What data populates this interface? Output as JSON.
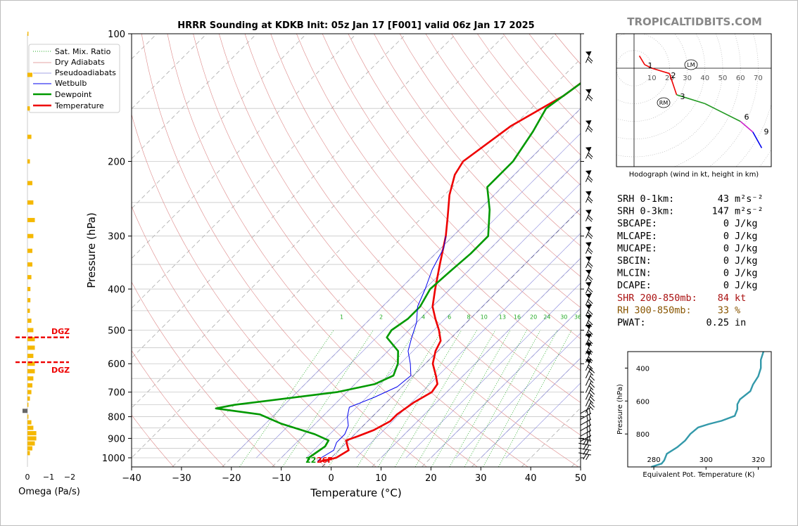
{
  "page": {
    "title": "HRRR Sounding at KDKB Init: 05z Jan 17 [F001] valid 06z Jan 17 2025",
    "brand": "TROPICALTIDBITS.COM"
  },
  "skewt": {
    "xlabel": "Temperature (°C)",
    "ylabel": "Pressure (hPa)",
    "x_ticks": [
      "−40",
      "−30",
      "−20",
      "−10",
      "0",
      "10",
      "20",
      "30",
      "40",
      "50"
    ],
    "y_ticks": [
      "100",
      "200",
      "300",
      "400",
      "500",
      "600",
      "700",
      "800",
      "900",
      "1000"
    ],
    "surface_dewpoint_label": "22",
    "surface_temp_label": "26F",
    "mixing_ratio_labels": [
      "1",
      "2",
      "4",
      "6",
      "8",
      "10",
      "13",
      "16",
      "20",
      "24",
      "30",
      "36"
    ],
    "legend": [
      "Sat. Mix. Ratio",
      "Dry Adiabats",
      "Pseudoadiabats",
      "Wetbulb",
      "Dewpoint",
      "Temperature"
    ]
  },
  "chart_data": [
    {
      "type": "line",
      "title": "HRRR Sounding at KDKB Init: 05z Jan 17 [F001] valid 06z Jan 17 2025",
      "xlabel": "Temperature (°C)",
      "ylabel": "Pressure (hPa)",
      "xlim": [
        -40,
        50
      ],
      "ylim": [
        1050,
        100
      ],
      "y_scale": "log",
      "skew": "temperature lines skewed 45°",
      "series": [
        {
          "name": "Temperature",
          "color": "#ee0000",
          "points": [
            [
              1020,
              -1.5
            ],
            [
              1000,
              1.0
            ],
            [
              960,
              2.0
            ],
            [
              940,
              1.0
            ],
            [
              910,
              -0.5
            ],
            [
              890,
              1.0
            ],
            [
              860,
              3.0
            ],
            [
              820,
              4.5
            ],
            [
              790,
              4.5
            ],
            [
              740,
              5.5
            ],
            [
              700,
              7.0
            ],
            [
              670,
              6.5
            ],
            [
              640,
              4.5
            ],
            [
              600,
              1.5
            ],
            [
              560,
              -0.5
            ],
            [
              530,
              -1.5
            ],
            [
              500,
              -4.0
            ],
            [
              470,
              -7.0
            ],
            [
              440,
              -10.0
            ],
            [
              400,
              -13.0
            ],
            [
              350,
              -17.0
            ],
            [
              300,
              -21.5
            ],
            [
              270,
              -25.0
            ],
            [
              240,
              -29.0
            ],
            [
              215,
              -32.0
            ],
            [
              200,
              -33.0
            ],
            [
              165,
              -30.5
            ],
            [
              140,
              -26.0
            ],
            [
              120,
              -24.0
            ],
            [
              100,
              -22.0
            ]
          ]
        },
        {
          "name": "Dewpoint",
          "color": "#009900",
          "points": [
            [
              1020,
              -4.0
            ],
            [
              1000,
              -4.5
            ],
            [
              970,
              -4.0
            ],
            [
              940,
              -3.5
            ],
            [
              910,
              -4.0
            ],
            [
              880,
              -8.0
            ],
            [
              830,
              -17.0
            ],
            [
              790,
              -23.0
            ],
            [
              765,
              -33.0
            ],
            [
              750,
              -30.0
            ],
            [
              700,
              -12.0
            ],
            [
              670,
              -6.0
            ],
            [
              640,
              -4.0
            ],
            [
              600,
              -5.5
            ],
            [
              560,
              -8.0
            ],
            [
              520,
              -13.0
            ],
            [
              500,
              -13.5
            ],
            [
              470,
              -12.5
            ],
            [
              440,
              -12.5
            ],
            [
              400,
              -14.0
            ],
            [
              360,
              -13.5
            ],
            [
              330,
              -13.0
            ],
            [
              300,
              -13.0
            ],
            [
              260,
              -18.0
            ],
            [
              230,
              -23.0
            ],
            [
              200,
              -23.0
            ],
            [
              170,
              -25.0
            ],
            [
              150,
              -27.0
            ],
            [
              130,
              -25.0
            ],
            [
              100,
              -18.0
            ]
          ]
        },
        {
          "name": "Wetbulb",
          "color": "#0000ee",
          "points": [
            [
              1020,
              -2.0
            ],
            [
              1000,
              -2.0
            ],
            [
              960,
              -1.0
            ],
            [
              920,
              -2.0
            ],
            [
              880,
              -2.0
            ],
            [
              840,
              -3.0
            ],
            [
              800,
              -5.0
            ],
            [
              760,
              -6.5
            ],
            [
              720,
              -3.5
            ],
            [
              680,
              -1.0
            ],
            [
              640,
              -0.5
            ],
            [
              600,
              -3.0
            ],
            [
              560,
              -6.0
            ],
            [
              520,
              -8.0
            ],
            [
              480,
              -10.0
            ],
            [
              440,
              -13.0
            ],
            [
              400,
              -15.0
            ],
            [
              360,
              -17.5
            ],
            [
              320,
              -19.5
            ],
            [
              300,
              -21.5
            ]
          ]
        }
      ]
    },
    {
      "type": "bar",
      "title": "",
      "xlabel": "Omega (Pa/s)",
      "x_ticks": [
        "0",
        "−1",
        "−2"
      ],
      "orientation": "horizontal",
      "color": "#f5b800",
      "dgz_labels": [
        "DGZ",
        "DGZ"
      ],
      "dgz_pressure_hPa": [
        520,
        595
      ],
      "points": [
        [
          100,
          0.02
        ],
        [
          125,
          0.1
        ],
        [
          150,
          0.05
        ],
        [
          175,
          0.08
        ],
        [
          200,
          0.05
        ],
        [
          225,
          0.1
        ],
        [
          250,
          0.12
        ],
        [
          275,
          0.15
        ],
        [
          300,
          0.12
        ],
        [
          325,
          0.1
        ],
        [
          350,
          0.1
        ],
        [
          375,
          0.08
        ],
        [
          400,
          0.06
        ],
        [
          425,
          0.06
        ],
        [
          450,
          0.05
        ],
        [
          475,
          0.08
        ],
        [
          500,
          0.12
        ],
        [
          525,
          0.15
        ],
        [
          550,
          0.15
        ],
        [
          575,
          0.12
        ],
        [
          600,
          0.15
        ],
        [
          625,
          0.15
        ],
        [
          650,
          0.12
        ],
        [
          675,
          0.1
        ],
        [
          700,
          0.08
        ],
        [
          725,
          0.05
        ],
        [
          750,
          0.02
        ],
        [
          775,
          -0.1
        ],
        [
          800,
          0.02
        ],
        [
          825,
          0.08
        ],
        [
          850,
          0.12
        ],
        [
          875,
          0.18
        ],
        [
          900,
          0.18
        ],
        [
          925,
          0.15
        ],
        [
          950,
          0.1
        ],
        [
          975,
          0.05
        ]
      ]
    },
    {
      "type": "line",
      "title": "",
      "caption": "Hodograph (wind in kt, height in km)",
      "ring_labels": [
        "10",
        "20",
        "30",
        "40",
        "50",
        "60",
        "70"
      ],
      "height_labels": [
        "1",
        "2",
        "3",
        "6",
        "9"
      ],
      "markers": [
        "LM",
        "RM"
      ],
      "points": [
        {
          "u": 3,
          "v": 7
        },
        {
          "u": 6,
          "v": 2
        },
        {
          "u": 10,
          "v": 0
        },
        {
          "u": 20,
          "v": -3
        },
        {
          "u": 24,
          "v": -15
        },
        {
          "u": 40,
          "v": -20
        },
        {
          "u": 60,
          "v": -30
        },
        {
          "u": 67,
          "v": -36
        },
        {
          "u": 72,
          "v": -45
        }
      ]
    },
    {
      "type": "line",
      "title": "",
      "xlabel": "Equivalent Pot. Temperature (K)",
      "ylabel": "Pressure (hPa)",
      "x_ticks": [
        "280",
        "300",
        "320"
      ],
      "y_ticks": [
        "400",
        "600",
        "800"
      ],
      "xlim": [
        270,
        325
      ],
      "ylim": [
        1000,
        300
      ],
      "color": "#3399aa",
      "points": [
        [
          1000,
          279
        ],
        [
          980,
          283
        ],
        [
          960,
          284
        ],
        [
          920,
          285
        ],
        [
          880,
          289
        ],
        [
          840,
          292
        ],
        [
          800,
          294
        ],
        [
          760,
          297
        ],
        [
          740,
          301
        ],
        [
          720,
          306
        ],
        [
          690,
          311
        ],
        [
          650,
          312
        ],
        [
          620,
          312
        ],
        [
          590,
          313
        ],
        [
          540,
          317
        ],
        [
          500,
          318
        ],
        [
          450,
          320
        ],
        [
          400,
          321
        ],
        [
          350,
          321
        ],
        [
          300,
          322
        ]
      ]
    }
  ],
  "stats": [
    {
      "label": "SRH 0-1km:",
      "value": "43",
      "unit": "m²s⁻²",
      "color": "#000000"
    },
    {
      "label": "SRH 0-3km:",
      "value": "147",
      "unit": "m²s⁻²",
      "color": "#000000"
    },
    {
      "label": "SBCAPE:",
      "value": "0",
      "unit": "J/kg",
      "color": "#000000"
    },
    {
      "label": "MLCAPE:",
      "value": "0",
      "unit": "J/kg",
      "color": "#000000"
    },
    {
      "label": "MUCAPE:",
      "value": "0",
      "unit": "J/kg",
      "color": "#000000"
    },
    {
      "label": "SBCIN:",
      "value": "0",
      "unit": "J/kg",
      "color": "#000000"
    },
    {
      "label": "MLCIN:",
      "value": "0",
      "unit": "J/kg",
      "color": "#000000"
    },
    {
      "label": "DCAPE:",
      "value": "0",
      "unit": "J/kg",
      "color": "#000000"
    },
    {
      "label": "SHR 200-850mb:",
      "value": "84",
      "unit": "kt",
      "color": "#aa1111"
    },
    {
      "label": "RH 300-850mb:",
      "value": "33",
      "unit": "%",
      "color": "#885500"
    },
    {
      "label": "PWAT:",
      "value": "0.25",
      "unit": "in",
      "color": "#000000"
    }
  ],
  "colors": {
    "temperature": "#ee0000",
    "dewpoint": "#009900",
    "wetbulb": "#0000ee",
    "dry_adiabat": "#dd8888",
    "pseudoadiabat": "#8888dd",
    "mixing_ratio": "#22aa22",
    "omega": "#f5b800",
    "theta_e": "#3399aa",
    "brand": "#888888"
  }
}
